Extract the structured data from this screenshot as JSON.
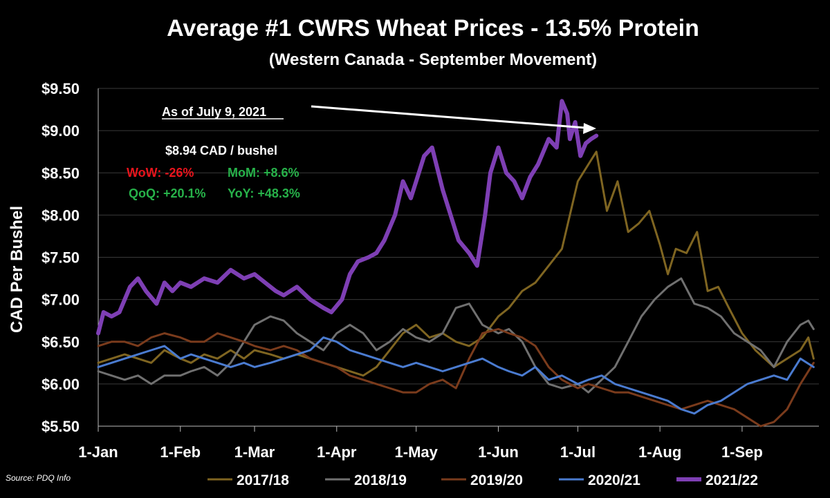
{
  "chart_data": {
    "type": "line",
    "title": "Average #1 CWRS Wheat Prices - 13.5% Protein",
    "subtitle": "(Western Canada - September Movement)",
    "ylabel": "CAD Per Bushel",
    "xlabel": "",
    "ylim": [
      5.5,
      9.5
    ],
    "yticks": [
      "$5.50",
      "$6.00",
      "$6.50",
      "$7.00",
      "$7.50",
      "$8.00",
      "$8.50",
      "$9.00",
      "$9.50"
    ],
    "ytick_values": [
      5.5,
      6.0,
      6.5,
      7.0,
      7.5,
      8.0,
      8.5,
      9.0,
      9.5
    ],
    "x_labels": [
      "1-Jan",
      "1-Feb",
      "1-Mar",
      "1-Apr",
      "1-May",
      "1-Jun",
      "1-Jul",
      "1-Aug",
      "1-Sep"
    ],
    "x_label_days": [
      0,
      31,
      59,
      90,
      120,
      151,
      181,
      212,
      243
    ],
    "xlim": [
      0,
      272
    ],
    "grid": "horizontal",
    "legend_position": "bottom",
    "source": "Source: PDQ Info",
    "annotation": {
      "as_of": "As of July 9, 2021",
      "price": "$8.94 CAD / bushel",
      "wow": "WoW: -26%",
      "mom": "MoM: +8.6%",
      "qoq": "QoQ: +20.1%",
      "yoy": "YoY: +48.3%",
      "colors": {
        "wow": "#e8141c",
        "mom": "#27b24a",
        "qoq": "#27b24a",
        "yoy": "#27b24a",
        "price": "#ffffff"
      }
    },
    "series": [
      {
        "name": "2017/18",
        "color": "#7f6521",
        "width": 3,
        "x": [
          0,
          5,
          10,
          15,
          20,
          25,
          31,
          35,
          40,
          45,
          50,
          55,
          59,
          65,
          70,
          75,
          80,
          85,
          90,
          95,
          100,
          105,
          110,
          115,
          120,
          125,
          130,
          135,
          140,
          145,
          151,
          155,
          160,
          165,
          170,
          175,
          178,
          181,
          185,
          188,
          192,
          196,
          200,
          204,
          208,
          212,
          215,
          218,
          222,
          226,
          230,
          234,
          238,
          243,
          248,
          255,
          260,
          265,
          268,
          270
        ],
        "values": [
          6.25,
          6.3,
          6.35,
          6.3,
          6.25,
          6.4,
          6.3,
          6.25,
          6.35,
          6.3,
          6.4,
          6.3,
          6.4,
          6.35,
          6.3,
          6.35,
          6.3,
          6.25,
          6.2,
          6.15,
          6.1,
          6.2,
          6.4,
          6.6,
          6.7,
          6.55,
          6.6,
          6.5,
          6.45,
          6.55,
          6.8,
          6.9,
          7.1,
          7.2,
          7.4,
          7.6,
          8.0,
          8.4,
          8.6,
          8.75,
          8.05,
          8.4,
          7.8,
          7.9,
          8.05,
          7.65,
          7.3,
          7.6,
          7.55,
          7.8,
          7.1,
          7.15,
          6.9,
          6.6,
          6.4,
          6.2,
          6.3,
          6.4,
          6.55,
          6.3
        ]
      },
      {
        "name": "2018/19",
        "color": "#707070",
        "width": 3,
        "x": [
          0,
          5,
          10,
          15,
          20,
          25,
          31,
          35,
          40,
          45,
          50,
          55,
          59,
          65,
          70,
          75,
          80,
          85,
          90,
          95,
          100,
          105,
          110,
          115,
          120,
          125,
          130,
          135,
          140,
          145,
          151,
          155,
          160,
          165,
          170,
          175,
          181,
          185,
          190,
          195,
          200,
          205,
          210,
          215,
          220,
          225,
          230,
          235,
          240,
          245,
          250,
          255,
          260,
          265,
          268,
          270
        ],
        "values": [
          6.15,
          6.1,
          6.05,
          6.1,
          6.0,
          6.1,
          6.1,
          6.15,
          6.2,
          6.1,
          6.25,
          6.5,
          6.7,
          6.8,
          6.75,
          6.6,
          6.5,
          6.4,
          6.6,
          6.7,
          6.6,
          6.4,
          6.5,
          6.65,
          6.55,
          6.5,
          6.6,
          6.9,
          6.95,
          6.7,
          6.6,
          6.65,
          6.5,
          6.2,
          6.0,
          5.95,
          6.0,
          5.9,
          6.05,
          6.2,
          6.5,
          6.8,
          7.0,
          7.15,
          7.25,
          6.95,
          6.9,
          6.8,
          6.6,
          6.5,
          6.4,
          6.2,
          6.5,
          6.7,
          6.75,
          6.65
        ]
      },
      {
        "name": "2019/20",
        "color": "#7a3b1c",
        "width": 3,
        "x": [
          0,
          5,
          10,
          15,
          20,
          25,
          31,
          35,
          40,
          45,
          50,
          55,
          59,
          65,
          70,
          75,
          80,
          85,
          90,
          95,
          100,
          105,
          110,
          115,
          120,
          125,
          130,
          135,
          140,
          145,
          151,
          155,
          160,
          165,
          170,
          175,
          181,
          185,
          190,
          195,
          200,
          205,
          210,
          215,
          220,
          225,
          230,
          235,
          240,
          245,
          250,
          255,
          260,
          265,
          270
        ],
        "values": [
          6.45,
          6.5,
          6.5,
          6.45,
          6.55,
          6.6,
          6.55,
          6.5,
          6.5,
          6.6,
          6.55,
          6.5,
          6.45,
          6.4,
          6.45,
          6.4,
          6.3,
          6.25,
          6.2,
          6.1,
          6.05,
          6.0,
          5.95,
          5.9,
          5.9,
          6.0,
          6.05,
          5.95,
          6.3,
          6.6,
          6.65,
          6.6,
          6.55,
          6.45,
          6.2,
          6.05,
          5.95,
          6.0,
          5.95,
          5.9,
          5.9,
          5.85,
          5.8,
          5.75,
          5.7,
          5.75,
          5.8,
          5.75,
          5.7,
          5.6,
          5.5,
          5.55,
          5.7,
          6.0,
          6.25
        ]
      },
      {
        "name": "2020/21",
        "color": "#4a7bd0",
        "width": 3,
        "x": [
          0,
          5,
          10,
          15,
          20,
          25,
          31,
          35,
          40,
          45,
          50,
          55,
          59,
          65,
          70,
          75,
          80,
          85,
          90,
          95,
          100,
          105,
          110,
          115,
          120,
          125,
          130,
          135,
          140,
          145,
          151,
          155,
          160,
          165,
          170,
          175,
          181,
          185,
          190,
          195,
          200,
          205,
          210,
          215,
          220,
          225,
          230,
          235,
          240,
          245,
          250,
          255,
          260,
          265,
          270
        ],
        "values": [
          6.2,
          6.25,
          6.3,
          6.35,
          6.4,
          6.45,
          6.3,
          6.35,
          6.3,
          6.25,
          6.2,
          6.25,
          6.2,
          6.25,
          6.3,
          6.35,
          6.4,
          6.55,
          6.5,
          6.4,
          6.35,
          6.3,
          6.25,
          6.2,
          6.25,
          6.2,
          6.15,
          6.2,
          6.25,
          6.3,
          6.2,
          6.15,
          6.1,
          6.2,
          6.05,
          6.1,
          6.0,
          6.05,
          6.1,
          6.0,
          5.95,
          5.9,
          5.85,
          5.8,
          5.7,
          5.65,
          5.75,
          5.8,
          5.9,
          6.0,
          6.05,
          6.1,
          6.05,
          6.3,
          6.2
        ]
      },
      {
        "name": "2021/22",
        "color": "#7e3fb4",
        "width": 6,
        "x": [
          0,
          2,
          5,
          8,
          12,
          15,
          18,
          22,
          25,
          28,
          31,
          35,
          40,
          45,
          50,
          55,
          59,
          63,
          67,
          70,
          75,
          80,
          85,
          88,
          92,
          95,
          98,
          102,
          105,
          108,
          112,
          115,
          118,
          120,
          123,
          126,
          130,
          133,
          136,
          140,
          143,
          146,
          148,
          151,
          154,
          157,
          160,
          163,
          166,
          170,
          173,
          175,
          177,
          178,
          180,
          182,
          184,
          186,
          188
        ],
        "values": [
          6.6,
          6.85,
          6.8,
          6.85,
          7.15,
          7.25,
          7.1,
          6.95,
          7.2,
          7.1,
          7.2,
          7.15,
          7.25,
          7.2,
          7.35,
          7.25,
          7.3,
          7.2,
          7.1,
          7.05,
          7.15,
          7.0,
          6.9,
          6.85,
          7.0,
          7.3,
          7.45,
          7.5,
          7.55,
          7.7,
          8.0,
          8.4,
          8.2,
          8.4,
          8.7,
          8.8,
          8.3,
          8.0,
          7.7,
          7.55,
          7.4,
          8.0,
          8.5,
          8.8,
          8.5,
          8.4,
          8.2,
          8.45,
          8.6,
          8.9,
          8.8,
          9.35,
          9.2,
          8.9,
          9.1,
          8.7,
          8.85,
          8.9,
          8.94
        ]
      }
    ]
  }
}
